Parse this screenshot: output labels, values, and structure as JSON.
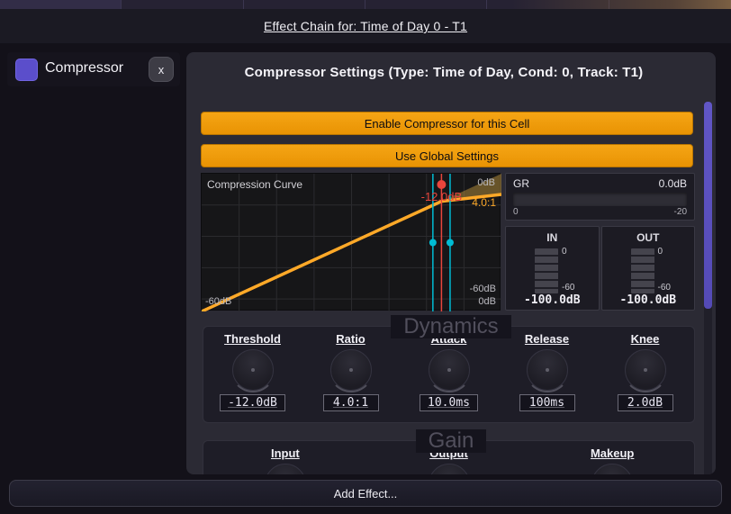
{
  "titlebar": {
    "title": "Effect Chain for: Time of Day 0 - T1"
  },
  "sidebar": {
    "effect": {
      "name": "Compressor",
      "remove_label": "x"
    }
  },
  "panel": {
    "title": "Compressor Settings (Type: Time of Day, Cond: 0, Track: T1)",
    "enable_button": "Enable Compressor for this Cell",
    "global_button": "Use Global Settings",
    "curve": {
      "title": "Compression Curve",
      "threshold_db": -12,
      "ratio": 4,
      "knee_db": 2,
      "min_db": -60,
      "max_db": 0,
      "threshold_label": "-12.0dB",
      "ratio_label": "4.0:1",
      "out_max_label": "0dB",
      "out_min_label": "-60dB",
      "in_min_label": "-60dB",
      "in_max_label": "0dB"
    },
    "gr": {
      "label": "GR",
      "value": "0.0dB",
      "scale_min": "0",
      "scale_max": "-20"
    },
    "meters": [
      {
        "label": "IN",
        "tick_top": "0",
        "tick_bottom": "-60",
        "value": "-100.0dB"
      },
      {
        "label": "OUT",
        "tick_top": "0",
        "tick_bottom": "-60",
        "value": "-100.0dB"
      }
    ],
    "dynamics": {
      "legend": "Dynamics",
      "knobs": [
        {
          "label": "Threshold",
          "value": "-12.0dB"
        },
        {
          "label": "Ratio",
          "value": "4.0:1"
        },
        {
          "label": "Attack",
          "value": "10.0ms"
        },
        {
          "label": "Release",
          "value": "100ms"
        },
        {
          "label": "Knee",
          "value": "2.0dB"
        }
      ]
    },
    "gain": {
      "legend": "Gain",
      "knobs": [
        {
          "label": "Input"
        },
        {
          "label": "Output"
        },
        {
          "label": "Makeup"
        }
      ]
    }
  },
  "footer": {
    "add_effect": "Add Effect..."
  },
  "colors": {
    "accent_orange": "#f09c08",
    "curve_orange": "#ffa928",
    "threshold_red": "#e8453c",
    "knee_teal": "#00bcd4",
    "scrollbar_purple": "#574bbd",
    "effect_icon_purple": "#5b4ecb"
  }
}
